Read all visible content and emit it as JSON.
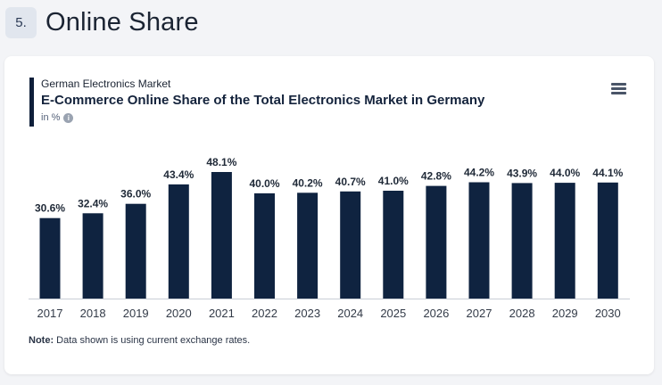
{
  "section": {
    "number": "5.",
    "title": "Online Share"
  },
  "card": {
    "subtitle": "German Electronics Market",
    "title": "E-Commerce Online Share of the Total Electronics Market in Germany",
    "unit": "in %",
    "note_label": "Note:",
    "note_text": " Data shown is using current exchange rates."
  },
  "icons": {
    "info": "info-icon",
    "menu": "hamburger-menu-icon"
  },
  "colors": {
    "bar": "#0f2340",
    "accent": "#0e1f3a"
  },
  "chart_data": {
    "type": "bar",
    "title": "E-Commerce Online Share of the Total Electronics Market in Germany",
    "xlabel": "",
    "ylabel": "in %",
    "categories": [
      "2017",
      "2018",
      "2019",
      "2020",
      "2021",
      "2022",
      "2023",
      "2024",
      "2025",
      "2026",
      "2027",
      "2028",
      "2029",
      "2030"
    ],
    "values": [
      30.6,
      32.4,
      36.0,
      43.4,
      48.1,
      40.0,
      40.2,
      40.7,
      41.0,
      42.8,
      44.2,
      43.9,
      44.0,
      44.1
    ],
    "labels": [
      "30.6%",
      "32.4%",
      "36.0%",
      "43.4%",
      "48.1%",
      "40.0%",
      "40.2%",
      "40.7%",
      "41.0%",
      "42.8%",
      "44.2%",
      "43.9%",
      "44.0%",
      "44.1%"
    ],
    "ylim": [
      0,
      50
    ],
    "grid": false,
    "legend": "none"
  }
}
